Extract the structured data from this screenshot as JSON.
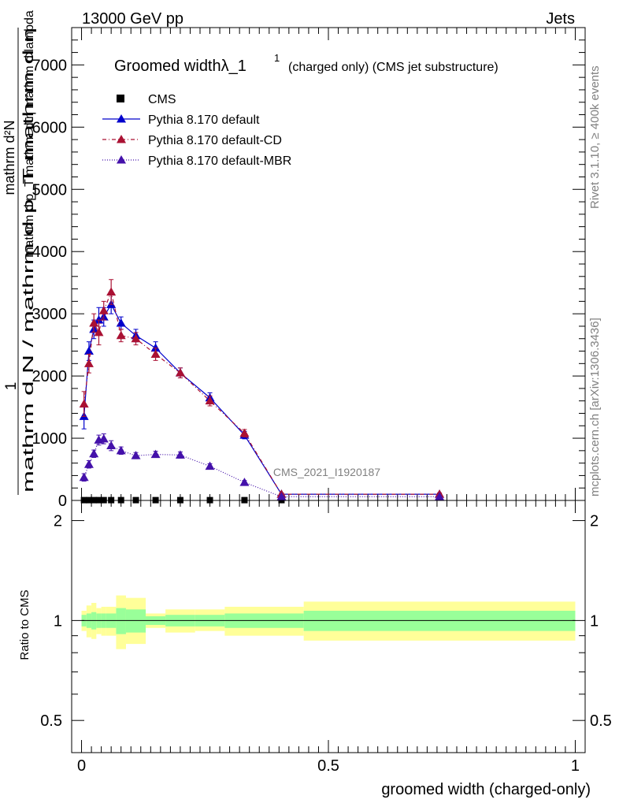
{
  "header": {
    "energy": "13000 GeV pp",
    "category": "Jets"
  },
  "side_labels": {
    "rivet": "Rivet 3.1.10, ≥ 400k events",
    "mcplots": "mcplots.cern.ch [arXiv:1306.3436]"
  },
  "watermark": "CMS_2021_I1920187",
  "chart_data": [
    {
      "type": "line",
      "title": "Groomed widthλ_1",
      "title_sup": "1",
      "subtitle": "(charged only) (CMS jet substructure)",
      "ylabel_numerator": "1",
      "ylabel_denominator": "mathrm d N / mathrm d p_T mathrm d η",
      "ylabel_fraction_top": "mathrm d²N",
      "ylabel_fraction_bottom": "mathrm d p_T mathrm d η mathrm d lambda",
      "xlim": [
        -0.02,
        1.02
      ],
      "ylim": [
        0,
        7600
      ],
      "y_ticks": [
        0,
        1000,
        2000,
        3000,
        4000,
        5000,
        6000,
        7000
      ],
      "y_tick_labels": [
        "0",
        "1000",
        "2000",
        "3000",
        "4000",
        "5000",
        "6000",
        "7000"
      ],
      "legend_position": "top-left",
      "series": [
        {
          "name": "CMS",
          "color": "#000000",
          "marker": "square",
          "x": [
            0.005,
            0.015,
            0.025,
            0.035,
            0.045,
            0.06,
            0.08,
            0.11,
            0.15,
            0.2,
            0.26,
            0.33,
            0.405
          ],
          "y": [
            5,
            5,
            5,
            5,
            5,
            5,
            5,
            5,
            5,
            5,
            5,
            5,
            5
          ]
        },
        {
          "name": "Pythia 8.170 default",
          "color": "#0000cc",
          "marker": "triangle",
          "dash": "",
          "x": [
            0.005,
            0.015,
            0.025,
            0.035,
            0.045,
            0.06,
            0.08,
            0.11,
            0.15,
            0.2,
            0.26,
            0.33,
            0.405,
            0.725
          ],
          "y": [
            1350,
            2400,
            2750,
            2900,
            2950,
            3150,
            2850,
            2650,
            2450,
            2050,
            1650,
            1050,
            100,
            100
          ],
          "err": [
            200,
            150,
            150,
            200,
            150,
            150,
            100,
            100,
            100,
            80,
            80,
            60,
            20,
            20
          ]
        },
        {
          "name": "Pythia 8.170 default-CD",
          "color": "#aa1133",
          "marker": "triangle",
          "dash": "5,3,1,3",
          "x": [
            0.005,
            0.015,
            0.025,
            0.035,
            0.045,
            0.06,
            0.08,
            0.11,
            0.15,
            0.2,
            0.26,
            0.33,
            0.405,
            0.725
          ],
          "y": [
            1550,
            2200,
            2850,
            2700,
            3050,
            3350,
            2650,
            2600,
            2350,
            2050,
            1600,
            1080,
            100,
            100
          ],
          "err": [
            200,
            150,
            150,
            200,
            150,
            200,
            100,
            100,
            100,
            80,
            80,
            60,
            20,
            20
          ]
        },
        {
          "name": "Pythia 8.170 default-MBR",
          "color": "#4411aa",
          "marker": "triangle",
          "dash": "1,2",
          "x": [
            0.005,
            0.015,
            0.025,
            0.035,
            0.045,
            0.06,
            0.08,
            0.11,
            0.15,
            0.2,
            0.26,
            0.33,
            0.405,
            0.725
          ],
          "y": [
            370,
            580,
            750,
            970,
            990,
            880,
            800,
            720,
            740,
            730,
            550,
            290,
            60,
            60
          ],
          "err": [
            60,
            60,
            60,
            80,
            80,
            80,
            60,
            50,
            50,
            50,
            40,
            30,
            10,
            10
          ]
        }
      ]
    },
    {
      "type": "line",
      "xlabel": "groomed width (charged-only)",
      "ylabel": "Ratio to CMS",
      "xlim": [
        -0.02,
        1.02
      ],
      "ylim": [
        0.4,
        2.3
      ],
      "log_y": true,
      "x_ticks": [
        0,
        0.5,
        1
      ],
      "x_tick_labels": [
        "0",
        "0.5",
        "1"
      ],
      "y_ticks": [
        0.5,
        1,
        2
      ],
      "y_tick_labels": [
        "0.5",
        "1",
        "2"
      ],
      "band_edges": [
        0,
        0.01,
        0.02,
        0.03,
        0.04,
        0.05,
        0.07,
        0.09,
        0.13,
        0.17,
        0.23,
        0.29,
        0.37,
        0.45,
        1.0
      ],
      "band_outer": [
        [
          0.93,
          1.07
        ],
        [
          0.89,
          1.11
        ],
        [
          0.88,
          1.13
        ],
        [
          0.91,
          1.09
        ],
        [
          0.9,
          1.1
        ],
        [
          0.9,
          1.1
        ],
        [
          0.82,
          1.19
        ],
        [
          0.85,
          1.17
        ],
        [
          0.95,
          1.05
        ],
        [
          0.92,
          1.08
        ],
        [
          0.93,
          1.08
        ],
        [
          0.9,
          1.1
        ],
        [
          0.9,
          1.1
        ],
        [
          0.87,
          1.14
        ]
      ],
      "band_inner": [
        [
          0.96,
          1.04
        ],
        [
          0.95,
          1.05
        ],
        [
          0.94,
          1.06
        ],
        [
          0.95,
          1.05
        ],
        [
          0.95,
          1.05
        ],
        [
          0.95,
          1.05
        ],
        [
          0.91,
          1.09
        ],
        [
          0.92,
          1.08
        ],
        [
          0.97,
          1.03
        ],
        [
          0.96,
          1.04
        ],
        [
          0.96,
          1.04
        ],
        [
          0.95,
          1.05
        ],
        [
          0.95,
          1.05
        ],
        [
          0.93,
          1.07
        ]
      ],
      "band_outer_color": "#ffff99",
      "band_inner_color": "#99ff99",
      "reference": 1
    }
  ]
}
